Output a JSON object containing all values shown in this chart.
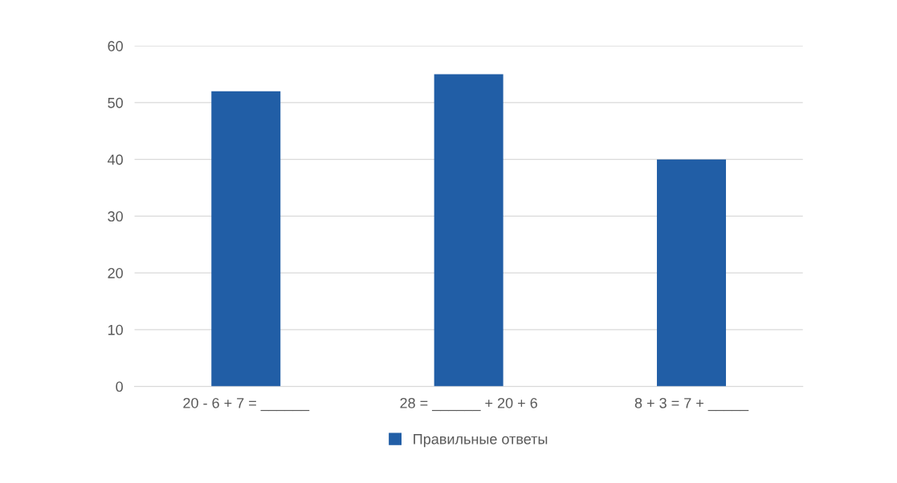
{
  "chart_data": {
    "type": "bar",
    "categories": [
      "20 - 6 + 7 = ______",
      "28 = ______ + 20 + 6",
      "8 + 3 = 7 + _____"
    ],
    "series": [
      {
        "name": "Правильные ответы",
        "color": "#215ea6",
        "values": [
          52,
          55,
          40
        ]
      }
    ],
    "ylim": [
      0,
      60
    ],
    "yticks": [
      0,
      10,
      20,
      30,
      40,
      50,
      60
    ],
    "grid": "y",
    "legend": "bottom"
  }
}
